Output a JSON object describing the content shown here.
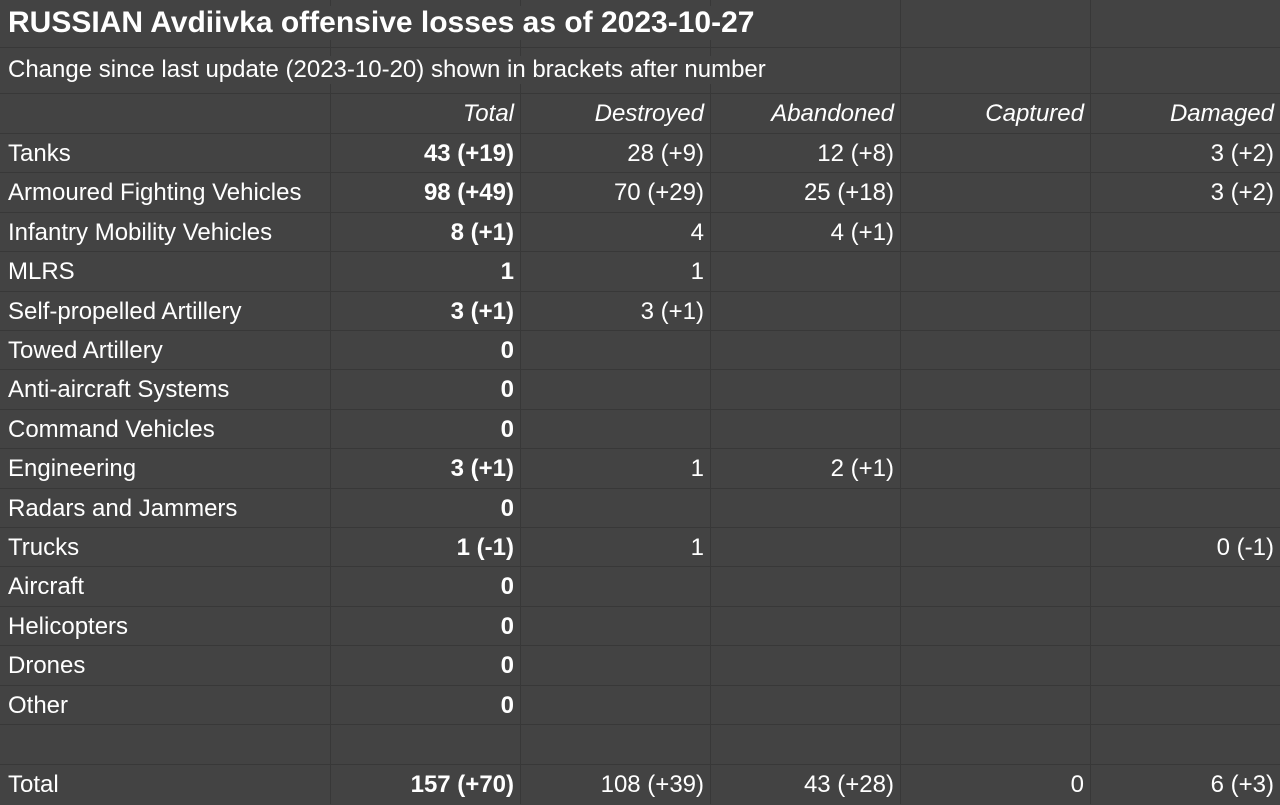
{
  "title": "RUSSIAN Avdiivka offensive losses as of 2023-10-27",
  "subtitle": "Change since last update (2023-10-20) shown in brackets after number",
  "columns": [
    "",
    "Total",
    "Destroyed",
    "Abandoned",
    "Captured",
    "Damaged"
  ],
  "rows": [
    {
      "category": "Tanks",
      "total": "43 (+19)",
      "destroyed": "28 (+9)",
      "abandoned": "12 (+8)",
      "captured": "",
      "damaged": "3 (+2)"
    },
    {
      "category": "Armoured Fighting Vehicles",
      "total": "98 (+49)",
      "destroyed": "70 (+29)",
      "abandoned": "25 (+18)",
      "captured": "",
      "damaged": "3 (+2)"
    },
    {
      "category": "Infantry Mobility Vehicles",
      "total": "8 (+1)",
      "destroyed": "4",
      "abandoned": "4 (+1)",
      "captured": "",
      "damaged": ""
    },
    {
      "category": "MLRS",
      "total": "1",
      "destroyed": "1",
      "abandoned": "",
      "captured": "",
      "damaged": ""
    },
    {
      "category": "Self-propelled Artillery",
      "total": "3 (+1)",
      "destroyed": "3 (+1)",
      "abandoned": "",
      "captured": "",
      "damaged": ""
    },
    {
      "category": "Towed Artillery",
      "total": "0",
      "destroyed": "",
      "abandoned": "",
      "captured": "",
      "damaged": ""
    },
    {
      "category": "Anti-aircraft Systems",
      "total": "0",
      "destroyed": "",
      "abandoned": "",
      "captured": "",
      "damaged": ""
    },
    {
      "category": "Command Vehicles",
      "total": "0",
      "destroyed": "",
      "abandoned": "",
      "captured": "",
      "damaged": ""
    },
    {
      "category": "Engineering",
      "total": "3 (+1)",
      "destroyed": "1",
      "abandoned": "2 (+1)",
      "captured": "",
      "damaged": ""
    },
    {
      "category": "Radars and Jammers",
      "total": "0",
      "destroyed": "",
      "abandoned": "",
      "captured": "",
      "damaged": ""
    },
    {
      "category": "Trucks",
      "total": "1 (-1)",
      "destroyed": "1",
      "abandoned": "",
      "captured": "",
      "damaged": "0 (-1)"
    },
    {
      "category": "Aircraft",
      "total": "0",
      "destroyed": "",
      "abandoned": "",
      "captured": "",
      "damaged": ""
    },
    {
      "category": "Helicopters",
      "total": "0",
      "destroyed": "",
      "abandoned": "",
      "captured": "",
      "damaged": ""
    },
    {
      "category": "Drones",
      "total": "0",
      "destroyed": "",
      "abandoned": "",
      "captured": "",
      "damaged": ""
    },
    {
      "category": "Other",
      "total": "0",
      "destroyed": "",
      "abandoned": "",
      "captured": "",
      "damaged": ""
    }
  ],
  "totals": {
    "category": "Total",
    "total": "157 (+70)",
    "destroyed": "108 (+39)",
    "abandoned": "43 (+28)",
    "captured": "0",
    "damaged": "6 (+3)"
  },
  "colors": {
    "background": "#434343",
    "gridline": "#383838",
    "text": "#ffffff"
  }
}
